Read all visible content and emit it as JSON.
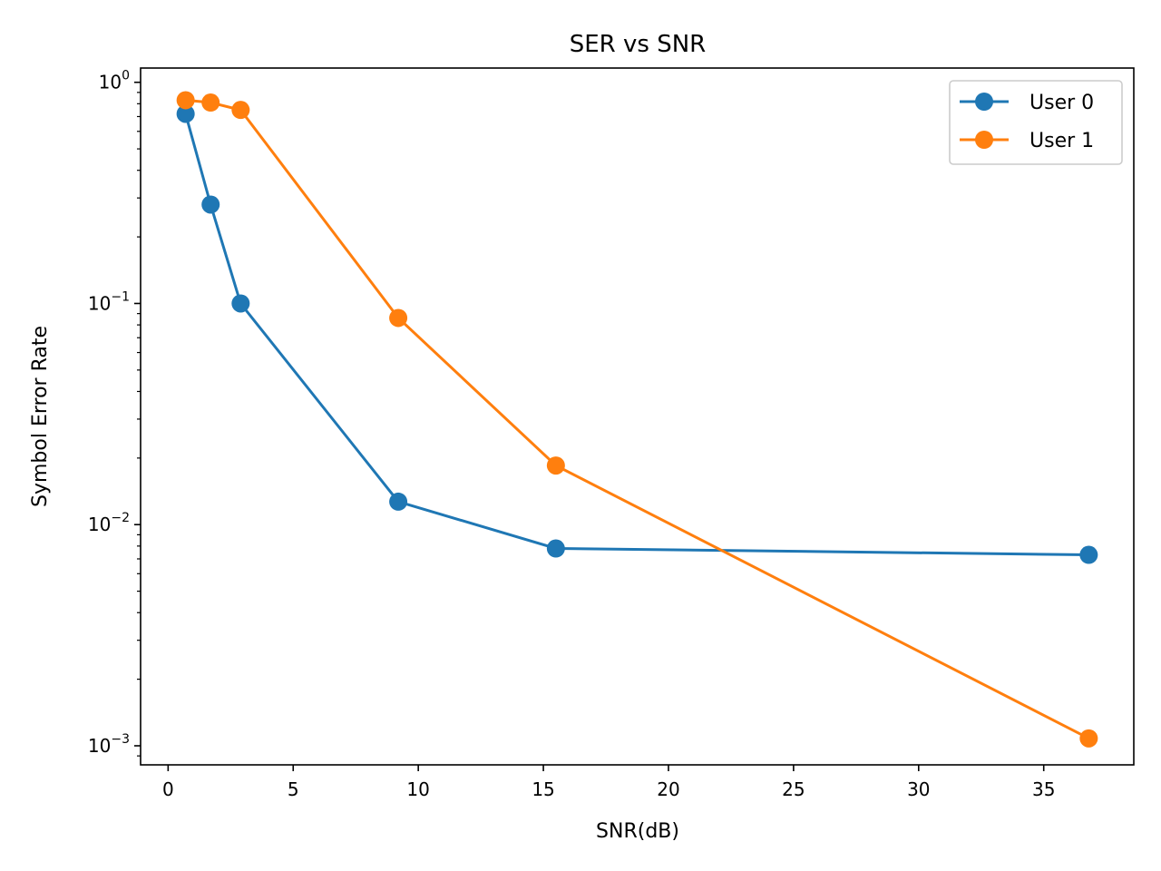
{
  "chart_data": {
    "type": "line",
    "title": "SER vs SNR",
    "xlabel": "SNR(dB)",
    "ylabel": "Symbol Error Rate",
    "xlim": [
      -1.1,
      38.6
    ],
    "ylim": [
      0.00082,
      1.16
    ],
    "yscale": "log",
    "x_ticks": [
      0,
      5,
      10,
      15,
      20,
      25,
      30,
      35
    ],
    "y_ticks": [
      {
        "base": "10",
        "exp": "0",
        "value": 1
      },
      {
        "base": "10",
        "exp": "−1",
        "value": 0.1
      },
      {
        "base": "10",
        "exp": "−2",
        "value": 0.01
      },
      {
        "base": "10",
        "exp": "−3",
        "value": 0.001
      }
    ],
    "grid": false,
    "legend_position": "top-right",
    "series": [
      {
        "name": "User 0",
        "color": "#1f77b4",
        "x": [
          0.7,
          1.7,
          2.9,
          9.2,
          15.5,
          36.8
        ],
        "y": [
          0.72,
          0.28,
          0.1,
          0.0127,
          0.0078,
          0.0073
        ]
      },
      {
        "name": "User 1",
        "color": "#ff7f0e",
        "x": [
          0.7,
          1.7,
          2.9,
          9.2,
          15.5,
          36.8
        ],
        "y": [
          0.83,
          0.81,
          0.75,
          0.086,
          0.0185,
          0.00108
        ]
      }
    ]
  }
}
